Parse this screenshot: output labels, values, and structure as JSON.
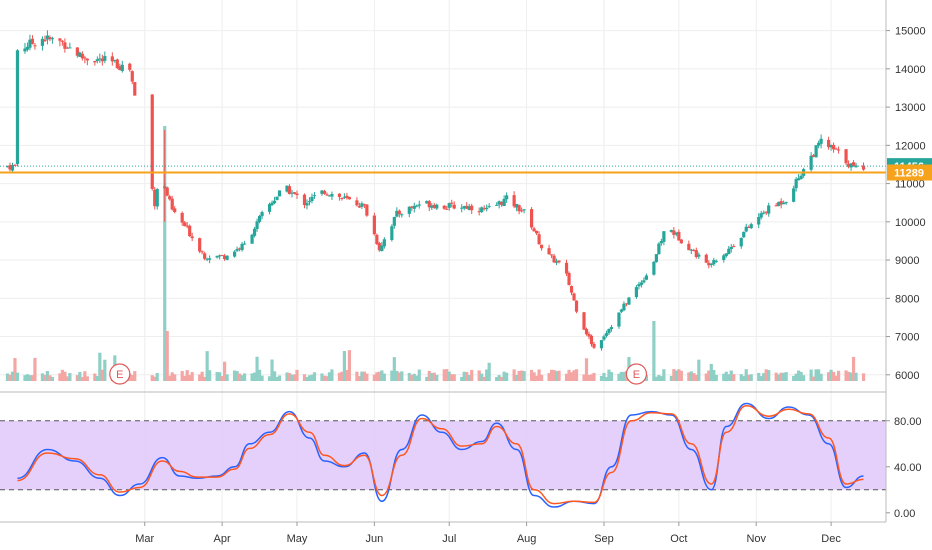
{
  "colors": {
    "up": "#26a69a",
    "down": "#ef5350",
    "vol_up": "#8fd0c6",
    "vol_down": "#f4a6a4",
    "level": "#f7a21b",
    "last_price_tag": "#26a69a",
    "stoch_band": "#e1c8fb",
    "stoch_k": "#2962ff",
    "stoch_d": "#ff5722",
    "grid": "#eeeeee",
    "earnings": "#e05a5a"
  },
  "chart_data": [
    {
      "type": "candlestick",
      "name": "price",
      "yticks": [
        6000,
        7000,
        8000,
        9000,
        10000,
        11000,
        12000,
        13000,
        14000,
        15000
      ],
      "ylim": [
        5550,
        15800
      ],
      "last_price": "11456",
      "level_price": "11289",
      "level_value": 11289,
      "last_value": 11456,
      "x_labels": [
        {
          "label": "Mar",
          "date": "2020-03-01"
        },
        {
          "label": "Apr",
          "date": "2020-04-01"
        },
        {
          "label": "May",
          "date": "2020-05-01"
        },
        {
          "label": "Jun",
          "date": "2020-06-01"
        },
        {
          "label": "Jul",
          "date": "2020-07-01"
        },
        {
          "label": "Aug",
          "date": "2020-08-01"
        },
        {
          "label": "Sep",
          "date": "2020-09-01"
        },
        {
          "label": "Oct",
          "date": "2020-10-01"
        },
        {
          "label": "Nov",
          "date": "2020-11-01"
        },
        {
          "label": "Dec",
          "date": "2020-12-01"
        }
      ],
      "earnings_markers": [
        {
          "label": "E",
          "date": "2020-02-20"
        },
        {
          "label": "E",
          "date": "2020-09-14"
        }
      ],
      "close_path": [
        [
          "2020-01-10",
          14500
        ],
        [
          "2020-01-20",
          14800
        ],
        [
          "2020-01-28",
          14700
        ],
        [
          "2020-02-05",
          14300
        ],
        [
          "2020-02-15",
          14200
        ],
        [
          "2020-02-24",
          14000
        ],
        [
          "2020-03-05",
          10500
        ],
        [
          "2020-03-07",
          11300
        ],
        [
          "2020-03-12",
          10300
        ],
        [
          "2020-03-18",
          9800
        ],
        [
          "2020-03-25",
          9100
        ],
        [
          "2020-04-02",
          9100
        ],
        [
          "2020-04-10",
          9400
        ],
        [
          "2020-04-18",
          10300
        ],
        [
          "2020-04-26",
          10900
        ],
        [
          "2020-05-04",
          10500
        ],
        [
          "2020-05-12",
          10800
        ],
        [
          "2020-05-20",
          10600
        ],
        [
          "2020-05-28",
          10400
        ],
        [
          "2020-06-03",
          9300
        ],
        [
          "2020-06-10",
          10200
        ],
        [
          "2020-06-20",
          10500
        ],
        [
          "2020-06-30",
          10400
        ],
        [
          "2020-07-08",
          10400
        ],
        [
          "2020-07-16",
          10300
        ],
        [
          "2020-07-24",
          10600
        ],
        [
          "2020-08-01",
          10200
        ],
        [
          "2020-08-08",
          9200
        ],
        [
          "2020-08-16",
          8800
        ],
        [
          "2020-08-22",
          7500
        ],
        [
          "2020-08-28",
          6700
        ],
        [
          "2020-09-04",
          7300
        ],
        [
          "2020-09-12",
          8100
        ],
        [
          "2020-09-20",
          8800
        ],
        [
          "2020-09-26",
          9900
        ],
        [
          "2020-10-04",
          9400
        ],
        [
          "2020-10-12",
          8900
        ],
        [
          "2020-10-20",
          9200
        ],
        [
          "2020-10-28",
          9800
        ],
        [
          "2020-11-05",
          10300
        ],
        [
          "2020-11-13",
          10600
        ],
        [
          "2020-11-21",
          11500
        ],
        [
          "2020-11-27",
          12100
        ],
        [
          "2020-12-04",
          11800
        ],
        [
          "2020-12-10",
          11400
        ],
        [
          "2020-12-14",
          11456
        ]
      ]
    },
    {
      "type": "line",
      "name": "stochastic",
      "yticks": [
        "0.00",
        "40.00",
        "80.00"
      ],
      "ylim": [
        -8,
        105
      ],
      "band": [
        20,
        80
      ],
      "series": [
        {
          "role": "k",
          "points": [
            [
              "2020-01-10",
              30
            ],
            [
              "2020-01-22",
              55
            ],
            [
              "2020-02-02",
              45
            ],
            [
              "2020-02-12",
              30
            ],
            [
              "2020-02-20",
              15
            ],
            [
              "2020-02-28",
              25
            ],
            [
              "2020-03-08",
              48
            ],
            [
              "2020-03-15",
              32
            ],
            [
              "2020-03-22",
              30
            ],
            [
              "2020-03-30",
              32
            ],
            [
              "2020-04-06",
              40
            ],
            [
              "2020-04-12",
              60
            ],
            [
              "2020-04-20",
              70
            ],
            [
              "2020-04-28",
              88
            ],
            [
              "2020-05-06",
              65
            ],
            [
              "2020-05-12",
              45
            ],
            [
              "2020-05-20",
              40
            ],
            [
              "2020-05-28",
              52
            ],
            [
              "2020-06-04",
              10
            ],
            [
              "2020-06-12",
              55
            ],
            [
              "2020-06-20",
              85
            ],
            [
              "2020-06-28",
              70
            ],
            [
              "2020-07-06",
              55
            ],
            [
              "2020-07-14",
              62
            ],
            [
              "2020-07-20",
              78
            ],
            [
              "2020-07-28",
              55
            ],
            [
              "2020-08-04",
              15
            ],
            [
              "2020-08-12",
              5
            ],
            [
              "2020-08-20",
              10
            ],
            [
              "2020-08-28",
              8
            ],
            [
              "2020-09-04",
              40
            ],
            [
              "2020-09-12",
              85
            ],
            [
              "2020-09-20",
              88
            ],
            [
              "2020-09-28",
              85
            ],
            [
              "2020-10-06",
              55
            ],
            [
              "2020-10-14",
              20
            ],
            [
              "2020-10-20",
              75
            ],
            [
              "2020-10-28",
              95
            ],
            [
              "2020-11-06",
              82
            ],
            [
              "2020-11-14",
              92
            ],
            [
              "2020-11-22",
              85
            ],
            [
              "2020-11-30",
              60
            ],
            [
              "2020-12-07",
              22
            ],
            [
              "2020-12-14",
              32
            ]
          ]
        },
        {
          "role": "d",
          "points": [
            [
              "2020-01-10",
              28
            ],
            [
              "2020-01-22",
              52
            ],
            [
              "2020-02-02",
              47
            ],
            [
              "2020-02-12",
              33
            ],
            [
              "2020-02-20",
              18
            ],
            [
              "2020-02-28",
              22
            ],
            [
              "2020-03-08",
              45
            ],
            [
              "2020-03-15",
              36
            ],
            [
              "2020-03-22",
              31
            ],
            [
              "2020-03-30",
              31
            ],
            [
              "2020-04-06",
              38
            ],
            [
              "2020-04-12",
              56
            ],
            [
              "2020-04-20",
              68
            ],
            [
              "2020-04-28",
              86
            ],
            [
              "2020-05-06",
              70
            ],
            [
              "2020-05-12",
              50
            ],
            [
              "2020-05-20",
              41
            ],
            [
              "2020-05-28",
              50
            ],
            [
              "2020-06-04",
              15
            ],
            [
              "2020-06-12",
              50
            ],
            [
              "2020-06-20",
              82
            ],
            [
              "2020-06-28",
              73
            ],
            [
              "2020-07-06",
              58
            ],
            [
              "2020-07-14",
              60
            ],
            [
              "2020-07-20",
              75
            ],
            [
              "2020-07-28",
              60
            ],
            [
              "2020-08-04",
              20
            ],
            [
              "2020-08-12",
              8
            ],
            [
              "2020-08-20",
              10
            ],
            [
              "2020-08-28",
              9
            ],
            [
              "2020-09-04",
              35
            ],
            [
              "2020-09-12",
              80
            ],
            [
              "2020-09-20",
              87
            ],
            [
              "2020-09-28",
              86
            ],
            [
              "2020-10-06",
              60
            ],
            [
              "2020-10-14",
              25
            ],
            [
              "2020-10-20",
              70
            ],
            [
              "2020-10-28",
              93
            ],
            [
              "2020-11-06",
              84
            ],
            [
              "2020-11-14",
              90
            ],
            [
              "2020-11-22",
              86
            ],
            [
              "2020-11-30",
              65
            ],
            [
              "2020-12-07",
              25
            ],
            [
              "2020-12-14",
              29
            ]
          ]
        }
      ]
    }
  ]
}
